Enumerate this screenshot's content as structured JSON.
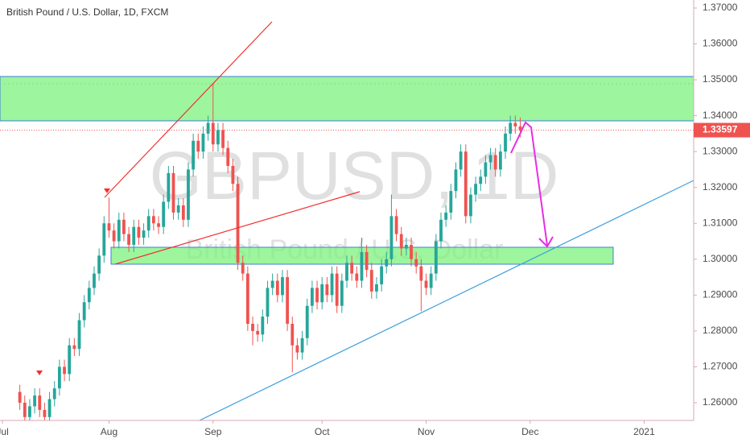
{
  "chart_data": {
    "type": "candlestick",
    "title": "British Pound / U.S. Dollar, 1D, FXCM",
    "watermark": "GBPUSD, 1D",
    "watermark_subtitle": "British Pound / U.S. Dollar",
    "up_color": "#26a69a",
    "down_color": "#ef5350",
    "open": [
      1.263,
      1.26,
      1.256,
      1.259,
      1.262,
      1.258,
      1.256,
      1.261,
      1.264,
      1.27,
      1.268,
      1.276,
      1.275,
      1.283,
      1.288,
      1.292,
      1.296,
      1.301,
      1.31,
      1.308,
      1.305,
      1.311,
      1.307,
      1.304,
      1.309,
      1.306,
      1.308,
      1.312,
      1.31,
      1.309,
      1.316,
      1.324,
      1.313,
      1.315,
      1.311,
      1.325,
      1.333,
      1.33,
      1.335,
      1.338,
      1.332,
      1.336,
      1.331,
      1.326,
      1.321,
      1.299,
      1.296,
      1.282,
      1.28,
      1.279,
      1.284,
      1.292,
      1.294,
      1.29,
      1.295,
      1.282,
      1.276,
      1.274,
      1.278,
      1.287,
      1.292,
      1.288,
      1.293,
      1.29,
      1.296,
      1.287,
      1.294,
      1.299,
      1.296,
      1.294,
      1.302,
      1.297,
      1.291,
      1.293,
      1.298,
      1.3,
      1.312,
      1.307,
      1.303,
      1.304,
      1.3,
      1.298,
      1.294,
      1.292,
      1.296,
      1.305,
      1.311,
      1.313,
      1.319,
      1.325,
      1.33,
      1.312,
      1.318,
      1.321,
      1.323,
      1.327,
      1.329,
      1.325,
      1.33,
      1.335,
      1.338,
      1.337
    ],
    "high": [
      1.265,
      1.262,
      1.261,
      1.264,
      1.264,
      1.26,
      1.263,
      1.266,
      1.272,
      1.272,
      1.278,
      1.278,
      1.285,
      1.29,
      1.294,
      1.298,
      1.303,
      1.312,
      1.3172,
      1.31,
      1.313,
      1.313,
      1.309,
      1.311,
      1.311,
      1.31,
      1.314,
      1.314,
      1.312,
      1.318,
      1.326,
      1.326,
      1.317,
      1.317,
      1.327,
      1.335,
      1.335,
      1.337,
      1.34,
      1.349,
      1.338,
      1.338,
      1.333,
      1.328,
      1.323,
      1.301,
      1.298,
      1.284,
      1.282,
      1.286,
      1.294,
      1.296,
      1.296,
      1.297,
      1.297,
      1.284,
      1.278,
      1.28,
      1.289,
      1.294,
      1.294,
      1.295,
      1.295,
      1.298,
      1.298,
      1.296,
      1.301,
      1.301,
      1.298,
      1.306,
      1.304,
      1.299,
      1.295,
      1.3,
      1.302,
      1.318,
      1.314,
      1.309,
      1.306,
      1.306,
      1.302,
      1.3,
      1.296,
      1.298,
      1.307,
      1.313,
      1.315,
      1.321,
      1.327,
      1.332,
      1.332,
      1.32,
      1.323,
      1.325,
      1.329,
      1.331,
      1.331,
      1.332,
      1.337,
      1.34,
      1.34,
      1.3395
    ],
    "low": [
      1.258,
      1.254,
      1.254,
      1.257,
      1.256,
      1.254,
      1.254,
      1.259,
      1.262,
      1.266,
      1.266,
      1.273,
      1.273,
      1.281,
      1.286,
      1.29,
      1.294,
      1.299,
      1.306,
      1.303,
      1.303,
      1.305,
      1.302,
      1.302,
      1.304,
      1.304,
      1.306,
      1.308,
      1.307,
      1.307,
      1.314,
      1.311,
      1.311,
      1.309,
      1.309,
      1.323,
      1.328,
      1.328,
      1.333,
      1.33,
      1.33,
      1.329,
      1.324,
      1.319,
      1.297,
      1.294,
      1.28,
      1.276,
      1.277,
      1.277,
      1.282,
      1.29,
      1.288,
      1.288,
      1.28,
      1.2685,
      1.272,
      1.272,
      1.276,
      1.285,
      1.286,
      1.286,
      1.288,
      1.288,
      1.285,
      1.285,
      1.292,
      1.294,
      1.292,
      1.292,
      1.295,
      1.289,
      1.289,
      1.291,
      1.296,
      1.298,
      1.305,
      1.301,
      1.301,
      1.298,
      1.296,
      1.2855,
      1.29,
      1.29,
      1.294,
      1.303,
      1.309,
      1.311,
      1.317,
      1.323,
      1.31,
      1.31,
      1.316,
      1.319,
      1.321,
      1.325,
      1.323,
      1.323,
      1.328,
      1.333,
      1.335,
      1.334
    ],
    "close": [
      1.26,
      1.256,
      1.259,
      1.262,
      1.258,
      1.256,
      1.261,
      1.264,
      1.27,
      1.268,
      1.276,
      1.275,
      1.283,
      1.288,
      1.292,
      1.296,
      1.301,
      1.31,
      1.308,
      1.305,
      1.311,
      1.307,
      1.304,
      1.309,
      1.306,
      1.308,
      1.312,
      1.31,
      1.309,
      1.316,
      1.324,
      1.313,
      1.315,
      1.311,
      1.325,
      1.333,
      1.33,
      1.335,
      1.338,
      1.332,
      1.336,
      1.331,
      1.326,
      1.321,
      1.299,
      1.296,
      1.282,
      1.28,
      1.279,
      1.284,
      1.292,
      1.294,
      1.29,
      1.295,
      1.282,
      1.276,
      1.274,
      1.278,
      1.287,
      1.292,
      1.288,
      1.293,
      1.29,
      1.296,
      1.287,
      1.294,
      1.299,
      1.296,
      1.294,
      1.302,
      1.297,
      1.291,
      1.293,
      1.298,
      1.3,
      1.312,
      1.307,
      1.303,
      1.304,
      1.3,
      1.298,
      1.294,
      1.292,
      1.296,
      1.305,
      1.311,
      1.313,
      1.319,
      1.325,
      1.33,
      1.312,
      1.318,
      1.321,
      1.323,
      1.327,
      1.329,
      1.325,
      1.33,
      1.335,
      1.338,
      1.337,
      1.33597
    ],
    "last_price": 1.33597,
    "xlim": [
      -4,
      136
    ],
    "xticks": [
      {
        "value": -3.5,
        "label": "Jul"
      },
      {
        "value": 18,
        "label": "Aug"
      },
      {
        "value": 39,
        "label": "Sep"
      },
      {
        "value": 61,
        "label": "Oct"
      },
      {
        "value": 82,
        "label": "Nov"
      },
      {
        "value": 103,
        "label": "Dec"
      },
      {
        "value": 126,
        "label": "2021"
      }
    ],
    "ylim": [
      1.25506,
      1.37224
    ],
    "yticks": [
      {
        "value": 1.26,
        "label": "1.26000"
      },
      {
        "value": 1.27,
        "label": "1.27000"
      },
      {
        "value": 1.28,
        "label": "1.28000"
      },
      {
        "value": 1.29,
        "label": "1.29000"
      },
      {
        "value": 1.3,
        "label": "1.30000"
      },
      {
        "value": 1.31,
        "label": "1.31000"
      },
      {
        "value": 1.32,
        "label": "1.32000"
      },
      {
        "value": 1.33,
        "label": "1.33000"
      },
      {
        "value": 1.34,
        "label": "1.34000"
      },
      {
        "value": 1.35,
        "label": "1.35000"
      },
      {
        "value": 1.36,
        "label": "1.36000"
      },
      {
        "value": 1.37,
        "label": "1.37000"
      }
    ]
  }
}
